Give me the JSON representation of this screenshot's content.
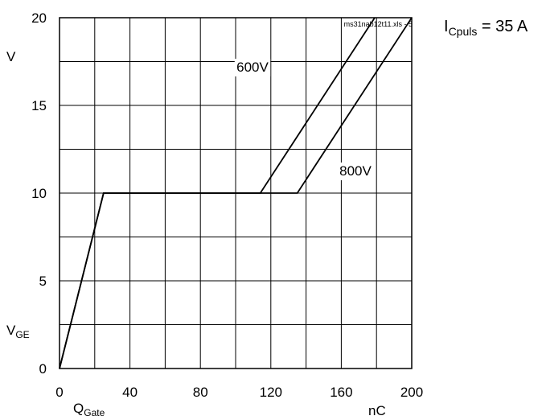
{
  "chart_data": {
    "type": "line",
    "source_tag": "ms31nab12t11.xls - 5",
    "condition": {
      "main": "I",
      "sub": "Cpuls",
      "rest": " = 35 A"
    },
    "xlabel": {
      "main": "Q",
      "sub": "Gate"
    },
    "xunit": "nC",
    "ylabel": {
      "main": "V",
      "sub": "GE"
    },
    "yunit": "V",
    "xlim": [
      0,
      200
    ],
    "ylim": [
      0,
      20
    ],
    "x_ticks": [
      0,
      40,
      80,
      120,
      160,
      200
    ],
    "y_ticks": [
      0,
      5,
      10,
      15,
      20
    ],
    "x_gridlines": [
      0,
      20,
      40,
      60,
      80,
      100,
      120,
      140,
      160,
      180,
      200
    ],
    "y_gridlines": [
      0,
      2.5,
      5,
      7.5,
      10,
      12.5,
      15,
      17.5,
      20
    ],
    "grid": true,
    "series": [
      {
        "name": "600V",
        "points": [
          [
            0,
            0
          ],
          [
            25,
            10
          ],
          [
            114,
            10
          ],
          [
            179,
            20
          ]
        ]
      },
      {
        "name": "800V",
        "points": [
          [
            0,
            0
          ],
          [
            25,
            10
          ],
          [
            135,
            10
          ],
          [
            200,
            20
          ]
        ]
      }
    ]
  }
}
